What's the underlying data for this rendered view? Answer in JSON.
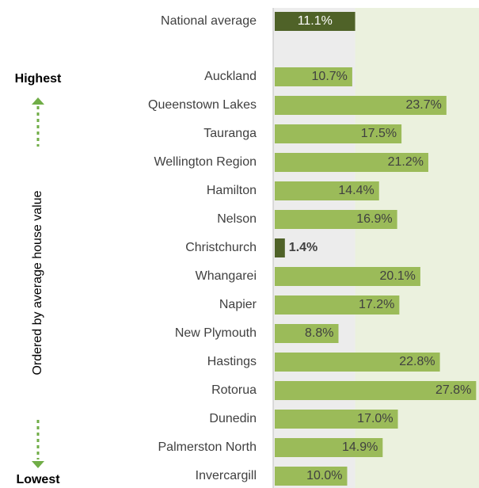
{
  "chart_data": {
    "type": "bar",
    "orientation": "horizontal",
    "categories": [
      "National average",
      "Auckland",
      "Queenstown Lakes",
      "Tauranga",
      "Wellington Region",
      "Hamilton",
      "Nelson",
      "Christchurch",
      "Whangarei",
      "Napier",
      "New Plymouth",
      "Hastings",
      "Rotorua",
      "Dunedin",
      "Palmerston North",
      "Invercargill"
    ],
    "values": [
      11.1,
      10.7,
      23.7,
      17.5,
      21.2,
      14.4,
      16.9,
      1.4,
      20.1,
      17.2,
      8.8,
      22.8,
      27.8,
      17.0,
      14.9,
      10.0
    ],
    "value_labels": [
      "11.1%",
      "10.7%",
      "23.7%",
      "17.5%",
      "21.2%",
      "14.4%",
      "16.9%",
      "1.4%",
      "20.1%",
      "17.2%",
      "8.8%",
      "22.8%",
      "27.8%",
      "17.0%",
      "14.9%",
      "10.0%"
    ],
    "colors": [
      "#4f6228",
      "#9bbb59",
      "#9bbb59",
      "#9bbb59",
      "#9bbb59",
      "#9bbb59",
      "#9bbb59",
      "#4f6228",
      "#9bbb59",
      "#9bbb59",
      "#9bbb59",
      "#9bbb59",
      "#9bbb59",
      "#9bbb59",
      "#9bbb59",
      "#9bbb59"
    ],
    "annotations": {
      "top": "Highest",
      "bottom": "Lowest",
      "axis_note": "Ordered by average house value"
    }
  }
}
